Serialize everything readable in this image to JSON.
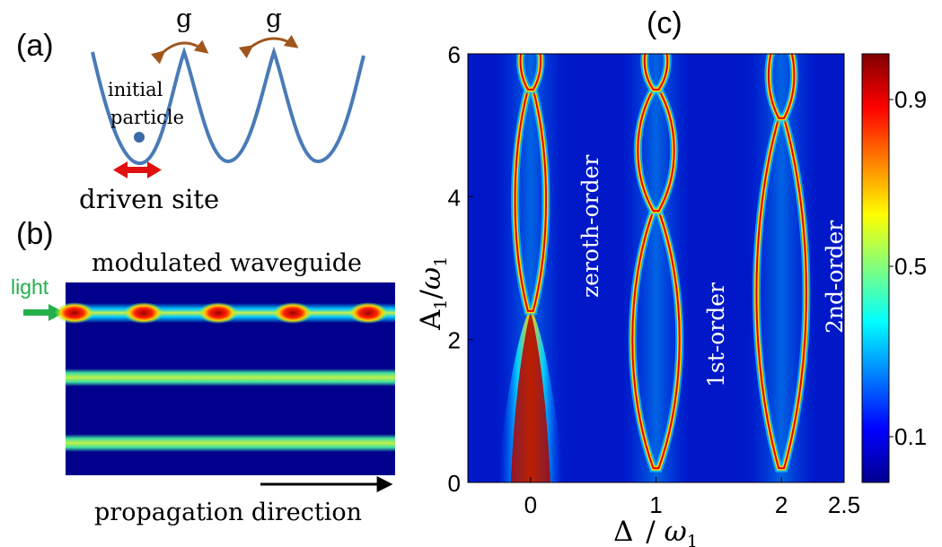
{
  "panel_a": {
    "label": "(a)",
    "coupling_left": "g",
    "coupling_right": "g",
    "particle_label_line1": "initial",
    "particle_label_line2": "particle",
    "driven_label": "driven site",
    "colors": {
      "potential": "#4a7ab8",
      "coupling_arrow": "#a0561c",
      "drive_arrow": "#e01010",
      "particle": "#3c6aa8"
    }
  },
  "panel_b": {
    "label": "(b)",
    "title": "modulated waveguide",
    "light_label": "light",
    "propagation_label": "propagation direction",
    "colors": {
      "background": "#00008c",
      "light": "#22b04a",
      "stripe": "#b4f050",
      "hot": "#c00000"
    }
  },
  "panel_c": {
    "label": "(c)",
    "ylabel_main": "A",
    "ylabel_sub": "1",
    "ylabel_den": "ω",
    "ylabel_den_sub": "1",
    "xlabel_main": "Δ",
    "xlabel_den": "ω",
    "xlabel_den_sub": "1",
    "x_ticks": [
      "0",
      "1",
      "2",
      "2.5"
    ],
    "y_ticks": [
      "0",
      "2",
      "4",
      "6"
    ],
    "colorbar_ticks": [
      "0.9",
      "0.5",
      "0.1"
    ],
    "band_labels": [
      "zeroth-order",
      "1st-order",
      "2nd-order"
    ]
  },
  "chart_data": {
    "type": "heatmap",
    "title": "(c)",
    "xlabel": "Δ/ω1",
    "ylabel": "A1/ω1",
    "xlim": [
      -0.5,
      2.5
    ],
    "ylim": [
      0,
      6
    ],
    "colorbar_ticks": [
      0.1,
      0.5,
      0.9
    ],
    "bands": [
      {
        "name": "zeroth-order",
        "center": 0.0,
        "crossings_A": [
          2.4,
          5.5
        ]
      },
      {
        "name": "1st-order",
        "center": 1.0,
        "crossings_A": [
          0.0,
          3.8,
          5.5
        ]
      },
      {
        "name": "2nd-order",
        "center": 2.0,
        "crossings_A": [
          0.0,
          5.1
        ]
      }
    ]
  }
}
